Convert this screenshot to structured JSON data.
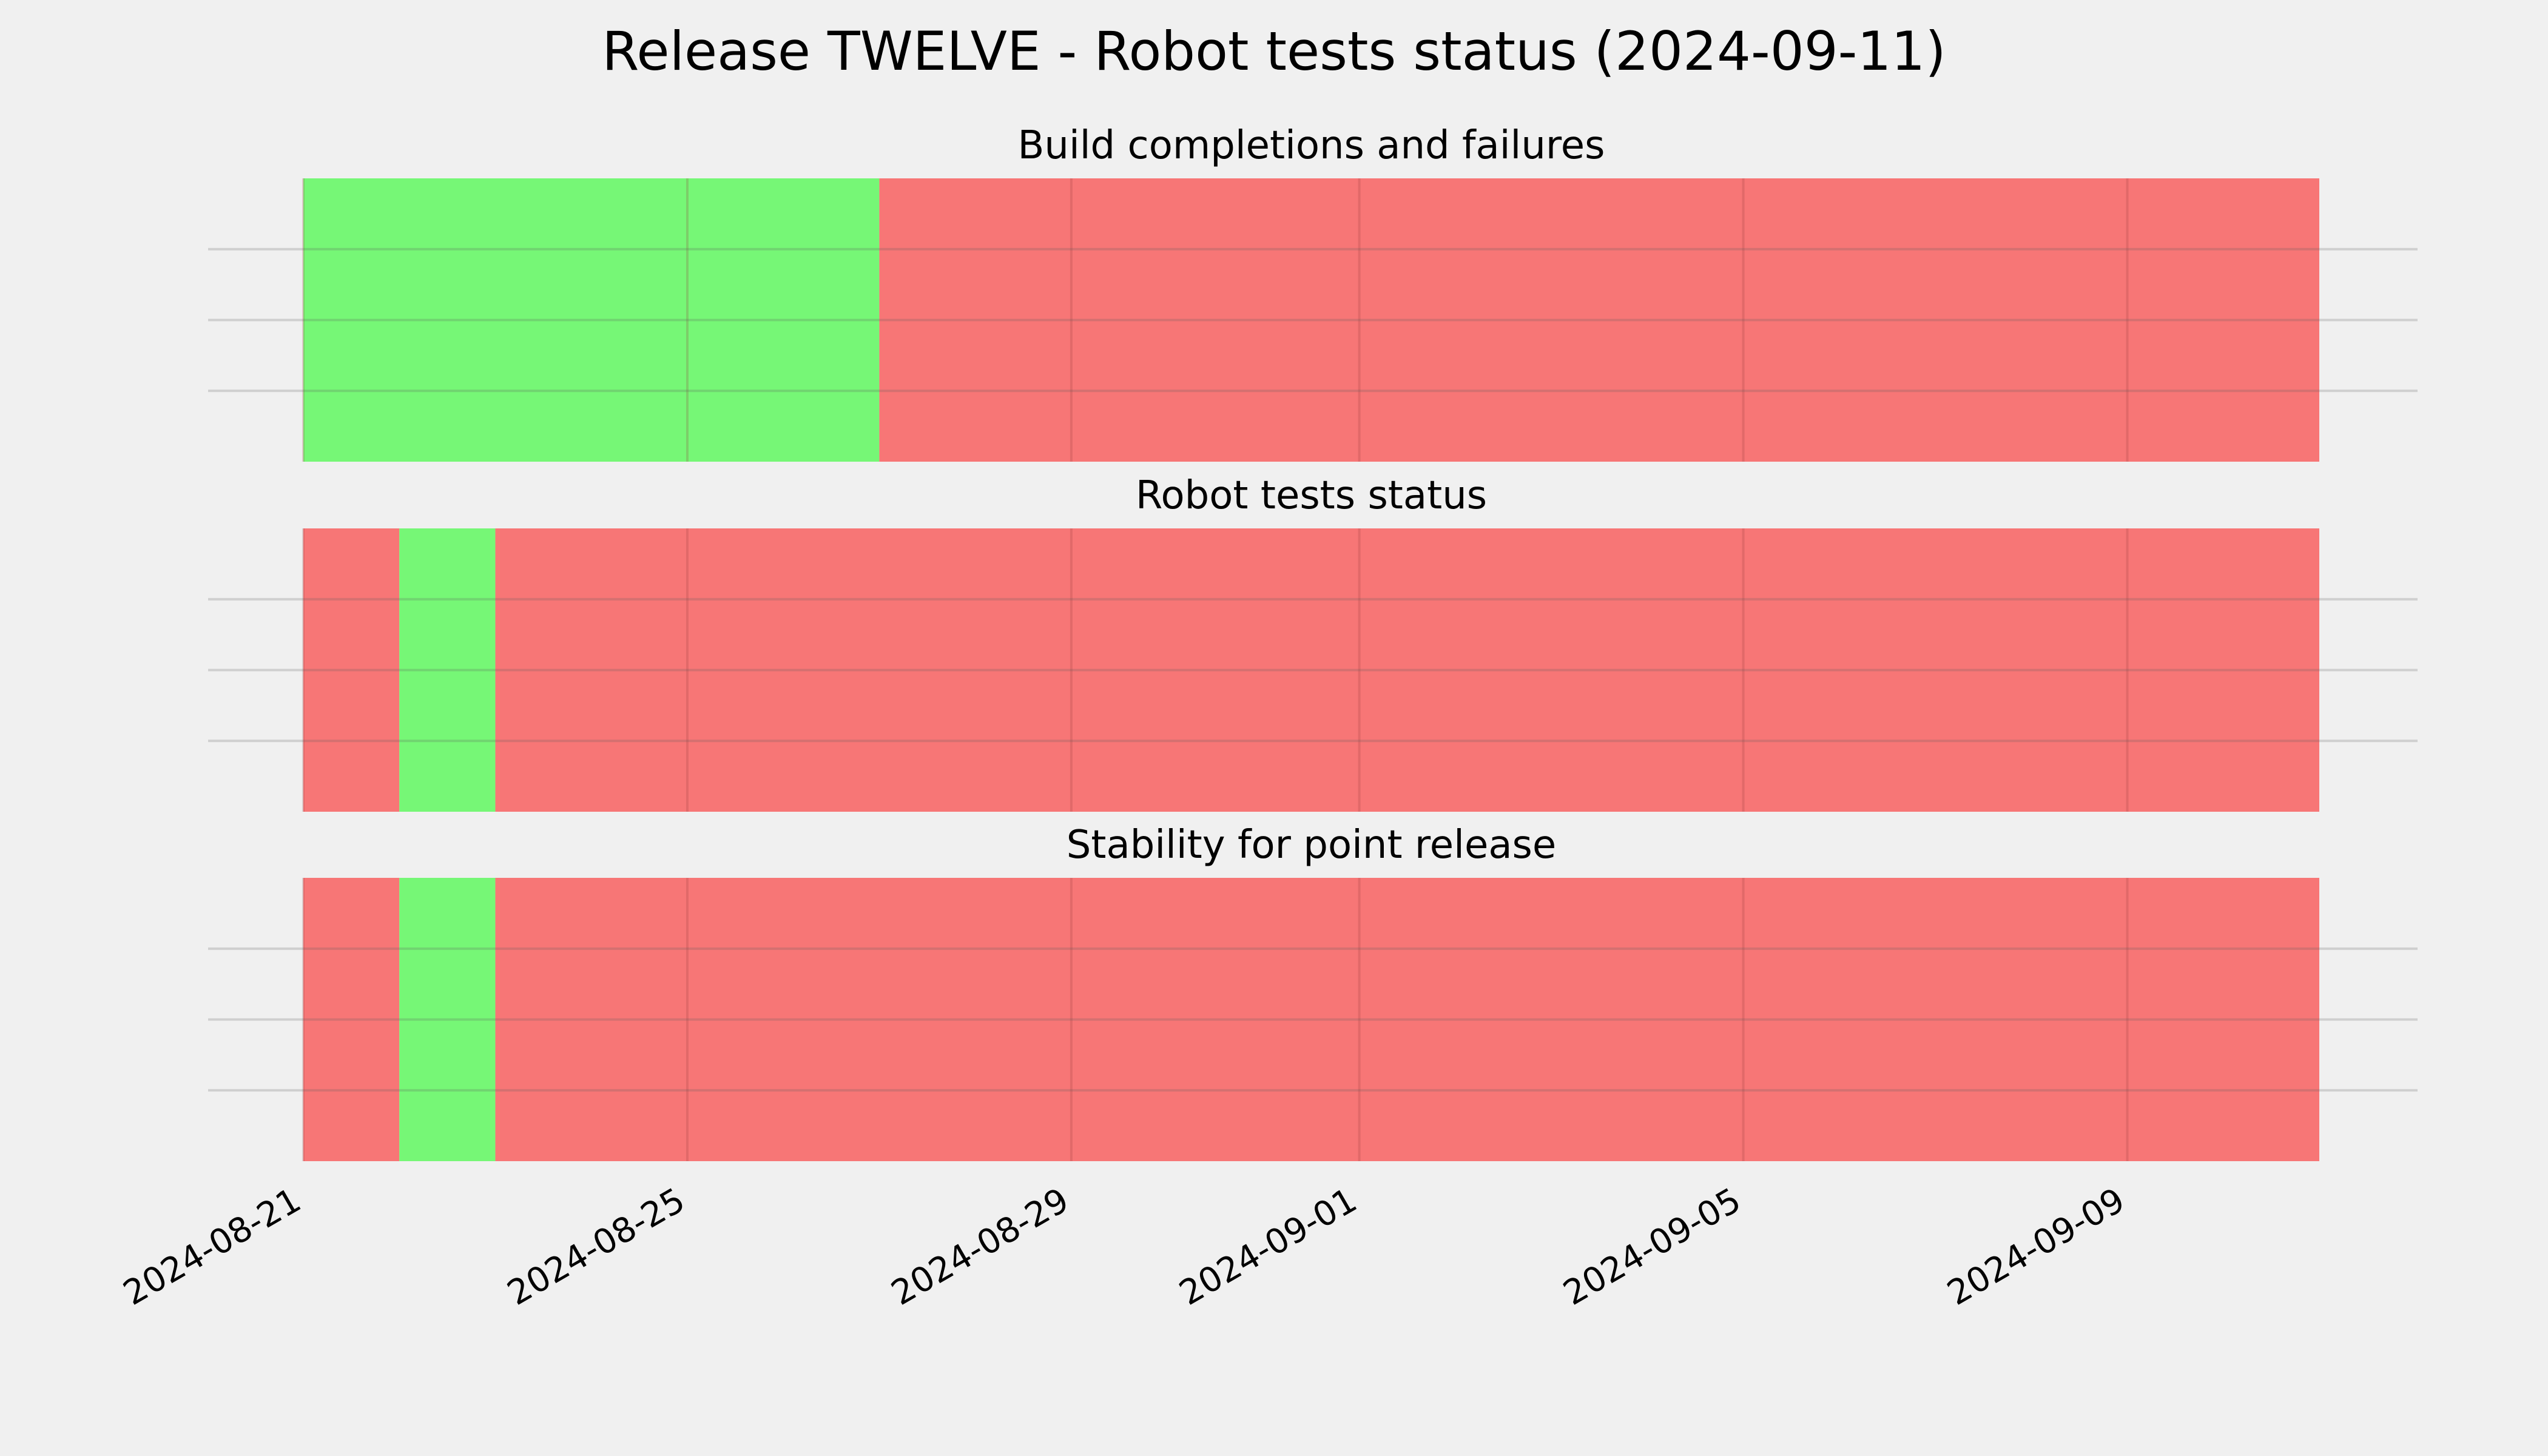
{
  "chart_data": {
    "type": "timeline",
    "title": "Release TWELVE - Robot tests status (2024-09-11)",
    "x_range": [
      "2024-08-21",
      "2024-09-11"
    ],
    "x_ticks": [
      "2024-08-21",
      "2024-08-25",
      "2024-08-29",
      "2024-09-01",
      "2024-09-05",
      "2024-09-09"
    ],
    "grid": true,
    "colors": {
      "pass": "#76f776",
      "fail": "#f77676"
    },
    "panels": [
      {
        "title": "Build completions and failures",
        "segments": [
          {
            "start": "2024-08-21",
            "end": "2024-08-27",
            "status": "pass"
          },
          {
            "start": "2024-08-27",
            "end": "2024-09-11",
            "status": "fail"
          }
        ]
      },
      {
        "title": "Robot tests status",
        "segments": [
          {
            "start": "2024-08-21",
            "end": "2024-08-22",
            "status": "fail"
          },
          {
            "start": "2024-08-22",
            "end": "2024-08-23",
            "status": "pass"
          },
          {
            "start": "2024-08-23",
            "end": "2024-09-11",
            "status": "fail"
          }
        ]
      },
      {
        "title": "Stability for point release",
        "segments": [
          {
            "start": "2024-08-21",
            "end": "2024-08-22",
            "status": "fail"
          },
          {
            "start": "2024-08-22",
            "end": "2024-08-23",
            "status": "pass"
          },
          {
            "start": "2024-08-23",
            "end": "2024-09-11",
            "status": "fail"
          }
        ]
      }
    ]
  }
}
